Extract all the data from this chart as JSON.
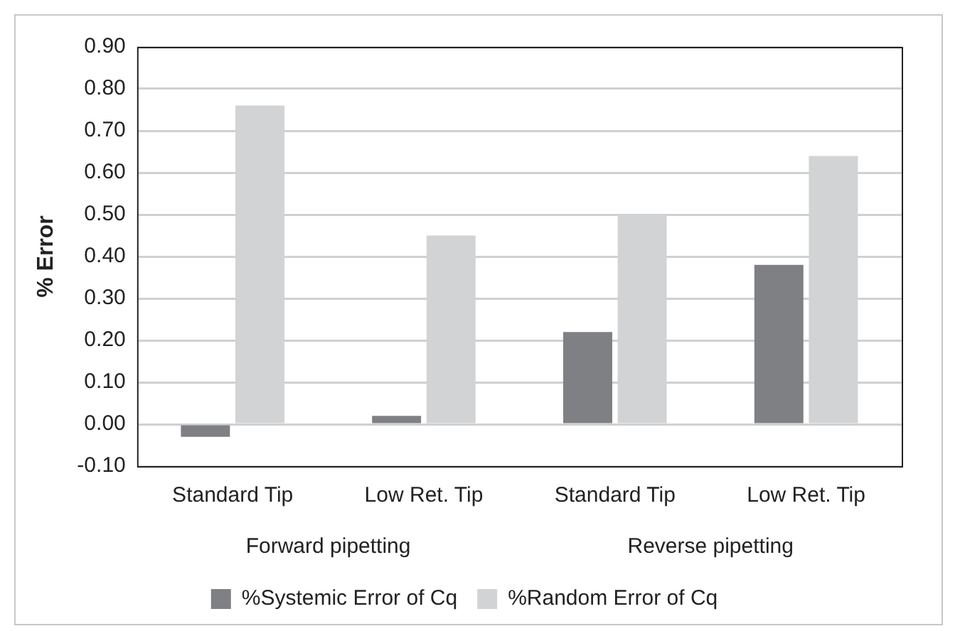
{
  "chart_data": {
    "type": "bar",
    "ylabel": "% Error",
    "categories": [
      "Standard Tip",
      "Low Ret. Tip",
      "Standard Tip",
      "Low Ret. Tip"
    ],
    "series": [
      {
        "name": "%Systemic Error of Cq",
        "color": "#7f8084",
        "values": [
          -0.03,
          0.02,
          0.22,
          0.38
        ]
      },
      {
        "name": "%Random Error of Cq",
        "color": "#d2d3d5",
        "values": [
          0.76,
          0.45,
          0.5,
          0.64
        ]
      }
    ],
    "annotations": [
      "Forward pipetting",
      "Reverse pipetting"
    ],
    "ylim": [
      -0.1,
      0.9
    ],
    "yticks": [
      {
        "value": -0.1,
        "label": "-0.10"
      },
      {
        "value": 0,
        "label": "0.00"
      },
      {
        "value": 0.1,
        "label": "0.10"
      },
      {
        "value": 0.2,
        "label": "0.20"
      },
      {
        "value": 0.3,
        "label": "0.30"
      },
      {
        "value": 0.4,
        "label": "0.40"
      },
      {
        "value": 0.5,
        "label": "0.50"
      },
      {
        "value": 0.6,
        "label": "0.60"
      },
      {
        "value": 0.7,
        "label": "0.70"
      },
      {
        "value": 0.8,
        "label": "0.80"
      },
      {
        "value": 0.9,
        "label": "0.90"
      }
    ],
    "grid": "y",
    "legend": "bottom"
  }
}
